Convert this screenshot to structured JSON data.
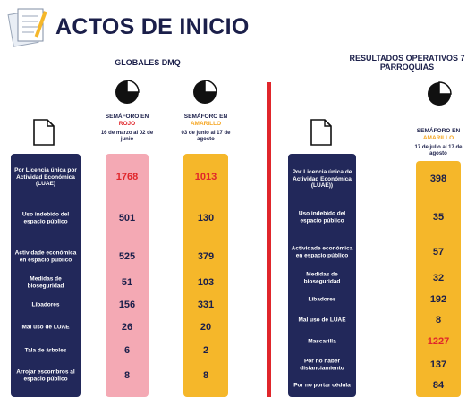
{
  "header": {
    "title": "ACTOS DE INICIO"
  },
  "left": {
    "title": "GLOBALES DMQ",
    "columns": [
      {
        "heading": "SEMÁFORO EN",
        "phase": "ROJO",
        "dates": "16 de marzo al 02 de junio"
      },
      {
        "heading": "SEMÁFORO EN",
        "phase": "AMARILLO",
        "dates": "03 de junio al 17 de agosto"
      }
    ],
    "rows": [
      {
        "label": "Por Licencia única por Actividad Económica (LUAE)",
        "values": [
          "1768",
          "1013"
        ]
      },
      {
        "label": "Uso indebido del espacio público",
        "values": [
          "501",
          "130"
        ]
      },
      {
        "label": "Actividade económica en espacio público",
        "values": [
          "525",
          "379"
        ]
      },
      {
        "label": "Medidas de bioseguridad",
        "values": [
          "51",
          "103"
        ]
      },
      {
        "label": "Libadores",
        "values": [
          "156",
          "331"
        ]
      },
      {
        "label": "Mal uso de LUAE",
        "values": [
          "26",
          "20"
        ]
      },
      {
        "label": "Tala de árboles",
        "values": [
          "6",
          "2"
        ]
      },
      {
        "label": "Arrojar escombros al espacio público",
        "values": [
          "8",
          "8"
        ]
      }
    ]
  },
  "right": {
    "title": "RESULTADOS OPERATIVOS 7 PARROQUIAS",
    "columns": [
      {
        "heading": "SEMÁFORO EN",
        "phase": "AMARILLO",
        "dates": "17 de julio al 17 de agosto"
      }
    ],
    "rows": [
      {
        "label": "Por Licencia única de Actividad Económica (LUAE))",
        "values": [
          "398"
        ]
      },
      {
        "label": "Uso indebido del espacio público",
        "values": [
          "35"
        ]
      },
      {
        "label": "Actividade económica en espacio público",
        "values": [
          "57"
        ]
      },
      {
        "label": "Medidas de bioseguridad",
        "values": [
          "32"
        ]
      },
      {
        "label": "Libadores",
        "values": [
          "192"
        ]
      },
      {
        "label": "Mal uso de LUAE",
        "values": [
          "8"
        ]
      },
      {
        "label": "Mascarilla",
        "values": [
          "1227"
        ]
      },
      {
        "label": "Por no haber distanciamiento",
        "values": [
          "137"
        ]
      },
      {
        "label": "Por no portar cédula",
        "values": [
          "84"
        ]
      }
    ]
  }
}
